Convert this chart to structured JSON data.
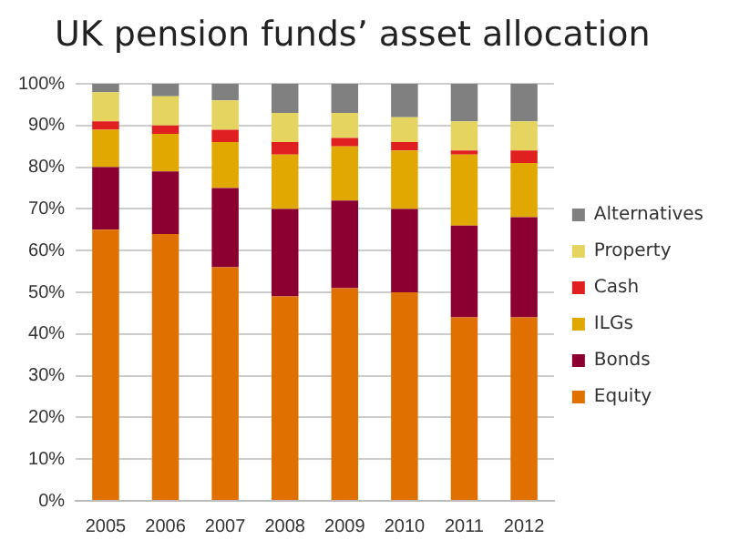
{
  "chart_data": {
    "type": "bar",
    "title": "UK pension funds’ asset allocation",
    "stacked": true,
    "categories": [
      "2005",
      "2006",
      "2007",
      "2008",
      "2009",
      "2010",
      "2011",
      "2012"
    ],
    "series": [
      {
        "name": "Equity",
        "color": "#e07000",
        "values": [
          65,
          64,
          56,
          49,
          51,
          50,
          44,
          44
        ]
      },
      {
        "name": "Bonds",
        "color": "#8b0030",
        "values": [
          15,
          15,
          19,
          21,
          21,
          20,
          22,
          24
        ]
      },
      {
        "name": "ILGs",
        "color": "#e0a800",
        "values": [
          9,
          9,
          11,
          13,
          13,
          14,
          17,
          13
        ]
      },
      {
        "name": "Cash",
        "color": "#e02020",
        "values": [
          2,
          2,
          3,
          3,
          2,
          2,
          1,
          3
        ]
      },
      {
        "name": "Property",
        "color": "#e6d460",
        "values": [
          7,
          7,
          7,
          7,
          6,
          6,
          7,
          7
        ]
      },
      {
        "name": "Alternatives",
        "color": "#808080",
        "values": [
          2,
          3,
          4,
          7,
          7,
          8,
          9,
          9
        ]
      }
    ],
    "ylim": [
      0,
      100
    ],
    "yticks": [
      {
        "value": 0,
        "label": "0%"
      },
      {
        "value": 10,
        "label": "10%"
      },
      {
        "value": 20,
        "label": "20%"
      },
      {
        "value": 30,
        "label": "30%"
      },
      {
        "value": 40,
        "label": "40%"
      },
      {
        "value": 50,
        "label": "50%"
      },
      {
        "value": 60,
        "label": "60%"
      },
      {
        "value": 70,
        "label": "70%"
      },
      {
        "value": 80,
        "label": "80%"
      },
      {
        "value": 90,
        "label": "90%"
      },
      {
        "value": 100,
        "label": "100%"
      }
    ],
    "grid": "y",
    "legend": "right"
  }
}
